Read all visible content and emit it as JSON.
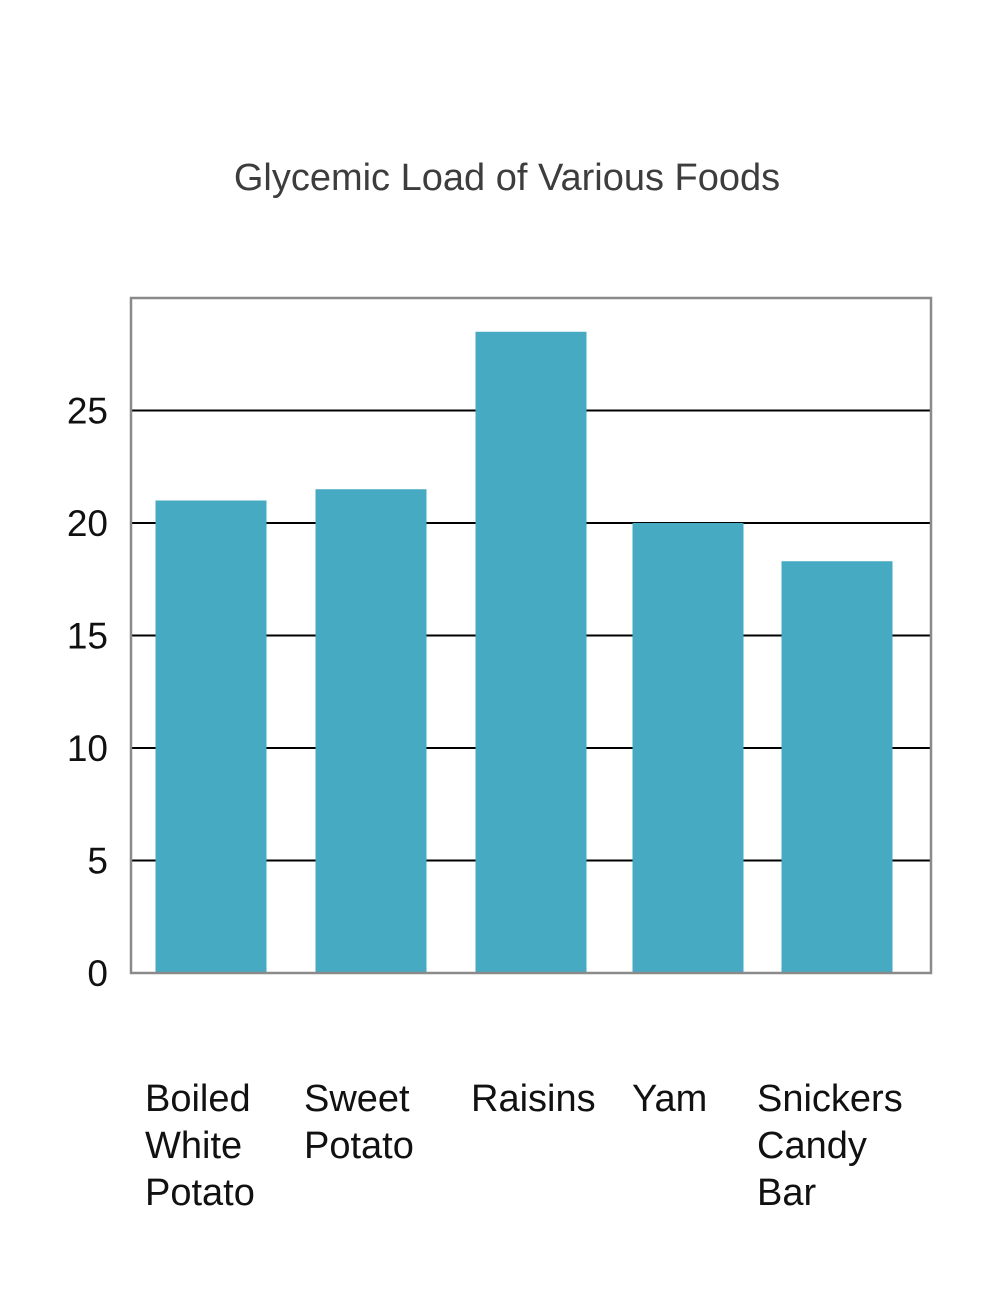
{
  "chart_data": {
    "type": "bar",
    "title": "Glycemic Load of Various Foods",
    "xlabel": "",
    "ylabel": "",
    "categories": [
      "Boiled White Potato",
      "Sweet Potato",
      "Raisins",
      "Yam",
      "Snickers Candy Bar"
    ],
    "category_lines": [
      [
        "Boiled",
        "White",
        "Potato"
      ],
      [
        "Sweet",
        "Potato"
      ],
      [
        "Raisins"
      ],
      [
        "Yam"
      ],
      [
        "Snickers",
        "Candy",
        "Bar"
      ]
    ],
    "values": [
      21,
      21.5,
      28.5,
      20,
      18.3
    ],
    "ylim": [
      0,
      30
    ],
    "yticks": [
      0,
      5,
      10,
      15,
      20,
      25
    ],
    "grid": true,
    "legend": "none",
    "colors": {
      "bar": "#45aac2",
      "grid": "#000000",
      "frame": "#8a8a8a"
    }
  }
}
